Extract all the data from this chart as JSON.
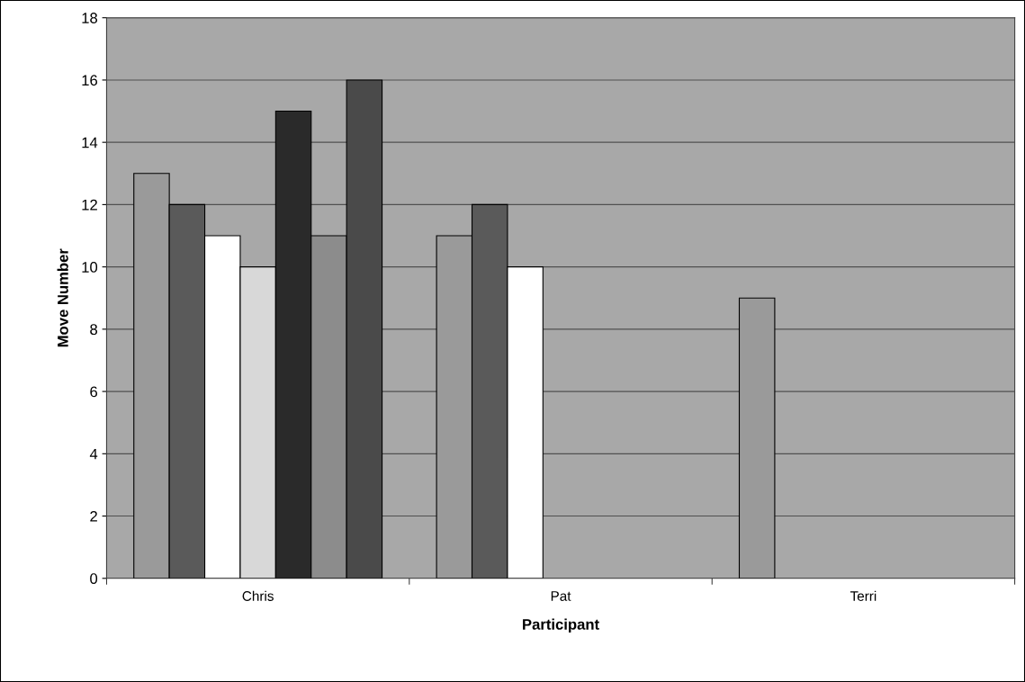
{
  "chart_data": {
    "type": "bar",
    "xlabel": "Participant",
    "ylabel": "Move Number",
    "categories": [
      "Chris",
      "Pat",
      "Terri"
    ],
    "series": [
      {
        "color": "#9a9a9a",
        "values": [
          13,
          11,
          9
        ]
      },
      {
        "color": "#5a5a5a",
        "values": [
          12,
          12,
          null
        ]
      },
      {
        "color": "#ffffff",
        "values": [
          11,
          10,
          null
        ]
      },
      {
        "color": "#d8d8d8",
        "values": [
          10,
          null,
          null
        ]
      },
      {
        "color": "#2a2a2a",
        "values": [
          15,
          null,
          null
        ]
      },
      {
        "color": "#8c8c8c",
        "values": [
          11,
          null,
          null
        ]
      },
      {
        "color": "#4a4a4a",
        "values": [
          16,
          null,
          null
        ]
      }
    ],
    "ylim": [
      0,
      18
    ],
    "yticks": [
      0,
      2,
      4,
      6,
      8,
      10,
      12,
      14,
      16,
      18
    ],
    "grid": "y",
    "legend": false
  }
}
